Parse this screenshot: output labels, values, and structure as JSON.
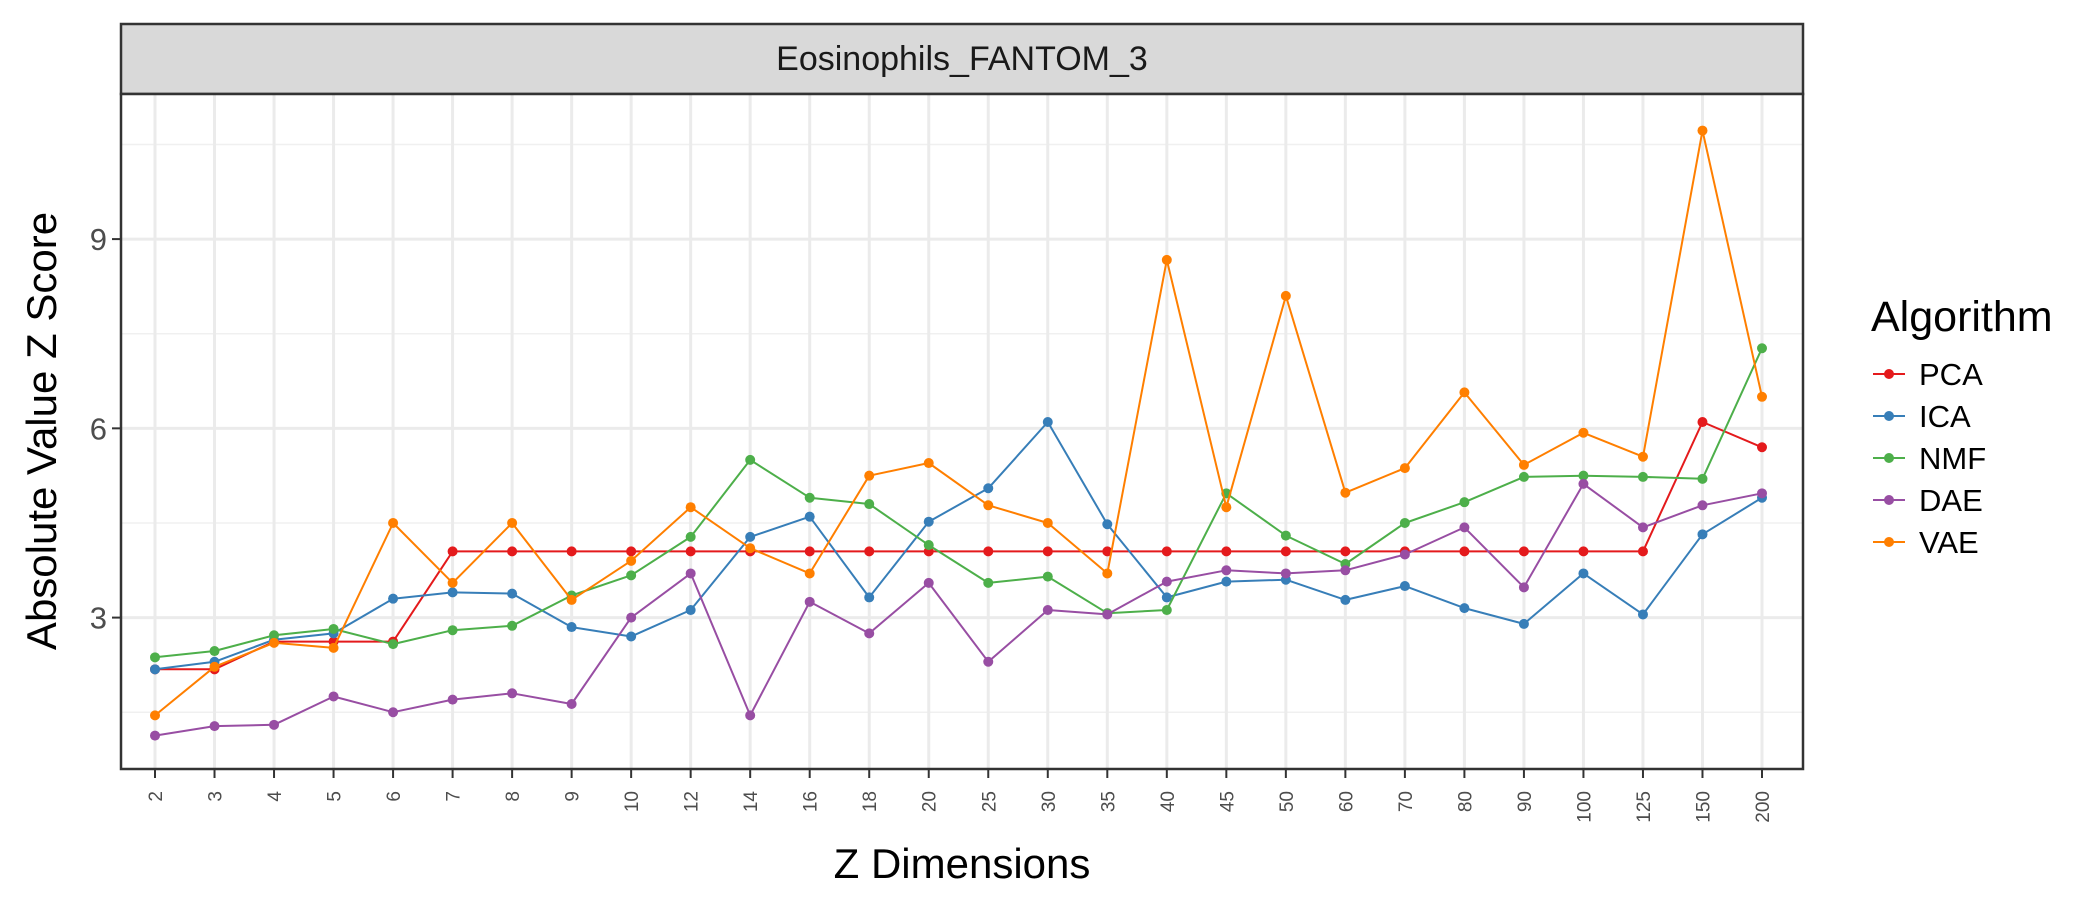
{
  "chart_data": {
    "type": "line",
    "title": "Eosinophils_FANTOM_3",
    "xlabel": "Z Dimensions",
    "ylabel": "Absolute Value Z Score",
    "categories": [
      "2",
      "3",
      "4",
      "5",
      "6",
      "7",
      "8",
      "9",
      "10",
      "12",
      "14",
      "16",
      "18",
      "20",
      "25",
      "30",
      "35",
      "40",
      "45",
      "50",
      "60",
      "70",
      "80",
      "90",
      "100",
      "125",
      "150",
      "200"
    ],
    "yticks": [
      3,
      6,
      9
    ],
    "yticks_labels": [
      "3",
      "6",
      "9"
    ],
    "ylim": [
      0.6,
      11.3
    ],
    "grid": true,
    "legend_title": "Algorithm",
    "legend_position": "right",
    "series": [
      {
        "name": "PCA",
        "color": "#e41a1c",
        "values": [
          2.18,
          2.18,
          2.62,
          2.62,
          2.62,
          4.05,
          4.05,
          4.05,
          4.05,
          4.05,
          4.05,
          4.05,
          4.05,
          4.05,
          4.05,
          4.05,
          4.05,
          4.05,
          4.05,
          4.05,
          4.05,
          4.05,
          4.05,
          4.05,
          4.05,
          4.05,
          6.1,
          5.7
        ]
      },
      {
        "name": "ICA",
        "color": "#377eb8",
        "values": [
          2.18,
          2.3,
          2.65,
          2.75,
          3.3,
          3.4,
          3.38,
          2.85,
          2.7,
          3.12,
          4.28,
          4.6,
          3.32,
          4.52,
          5.05,
          6.1,
          4.48,
          3.32,
          3.57,
          3.6,
          3.28,
          3.5,
          3.15,
          2.9,
          3.7,
          3.05,
          4.32,
          4.9
        ]
      },
      {
        "name": "NMF",
        "color": "#4daf4a",
        "values": [
          2.37,
          2.47,
          2.72,
          2.82,
          2.58,
          2.8,
          2.87,
          3.35,
          3.67,
          4.28,
          5.5,
          4.9,
          4.8,
          4.15,
          3.55,
          3.65,
          3.07,
          3.12,
          4.97,
          4.3,
          3.85,
          4.5,
          4.83,
          5.23,
          5.25,
          5.23,
          5.2,
          7.27
        ]
      },
      {
        "name": "DAE",
        "color": "#984ea3",
        "values": [
          1.13,
          1.28,
          1.3,
          1.75,
          1.5,
          1.7,
          1.8,
          1.63,
          3.0,
          3.7,
          1.45,
          3.25,
          2.75,
          3.55,
          2.3,
          3.12,
          3.05,
          3.57,
          3.75,
          3.7,
          3.75,
          4.0,
          4.43,
          3.48,
          5.12,
          4.43,
          4.78,
          4.97
        ]
      },
      {
        "name": "VAE",
        "color": "#ff7f00",
        "values": [
          1.45,
          2.22,
          2.6,
          2.52,
          4.5,
          3.55,
          4.5,
          3.28,
          3.9,
          4.75,
          4.1,
          3.7,
          5.25,
          5.45,
          4.78,
          4.5,
          3.7,
          8.67,
          4.75,
          8.1,
          4.98,
          5.37,
          6.57,
          5.42,
          5.93,
          5.55,
          10.72,
          6.5
        ]
      }
    ]
  }
}
